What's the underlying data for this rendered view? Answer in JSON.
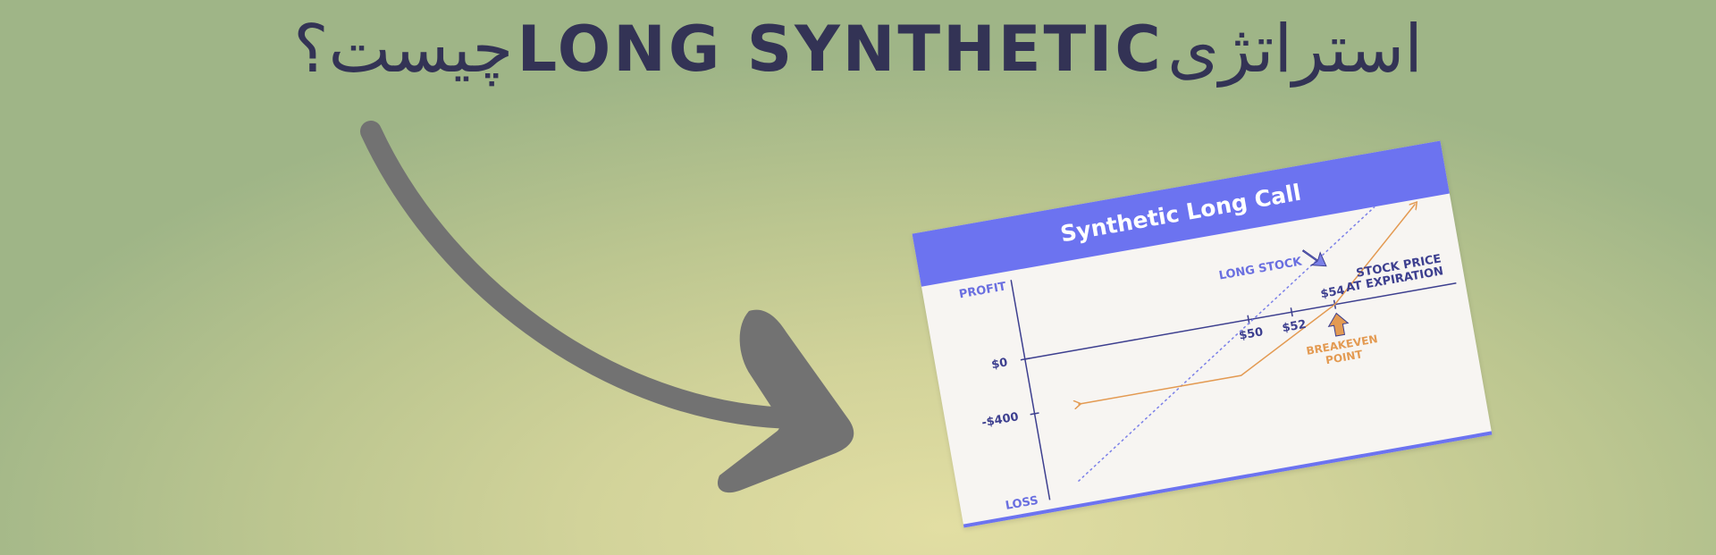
{
  "headline": {
    "prefix": "استراتژی",
    "strategy_name": "LONG SYNTHETIC",
    "suffix": "چیست؟"
  },
  "card": {
    "title": "Synthetic Long Call",
    "axis": {
      "profit": "PROFIT",
      "loss": "LOSS",
      "zero": "$0",
      "minus_400": "-$400",
      "x_title_line1": "STOCK PRICE",
      "x_title_line2": "AT EXPIRATION"
    },
    "ticks": {
      "t50": "$50",
      "t52": "$52",
      "t54": "$54"
    },
    "long_stock_label": "LONG STOCK",
    "breakeven_line1": "BREAKEVEN",
    "breakeven_line2": "POINT"
  },
  "colors": {
    "headline_text": "#333355",
    "card_header": "#6c73f0",
    "axis": "#3d3f8f",
    "long_stock_line": "#7b80e8",
    "payoff_line": "#e39a52",
    "big_arrow": "#727272"
  },
  "icons": {
    "big_arrow": "curved-arrow-icon",
    "long_stock_pointer": "arrow-down-right-icon",
    "breakeven_pointer": "arrow-up-icon"
  }
}
